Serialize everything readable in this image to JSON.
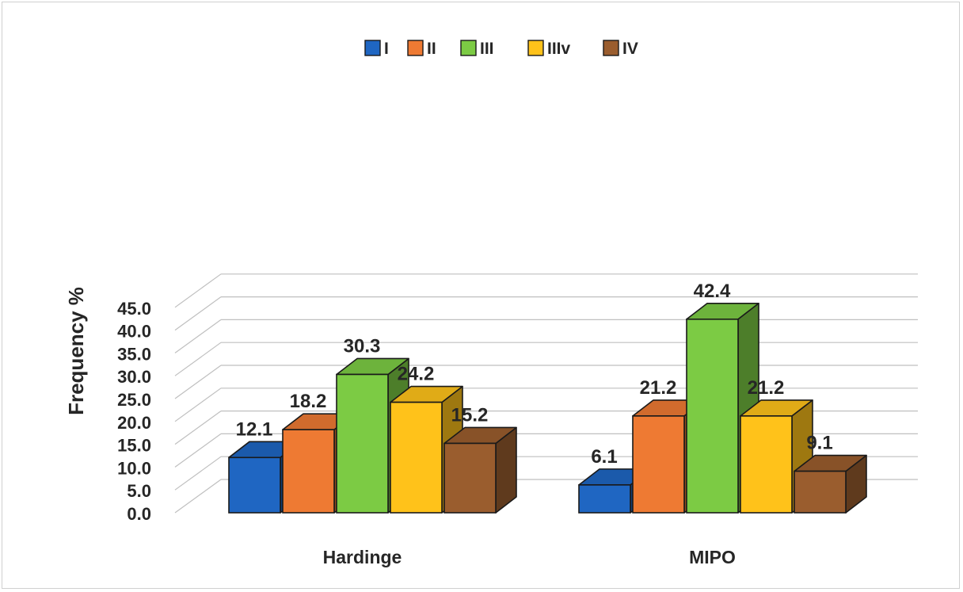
{
  "chart_data": {
    "type": "bar",
    "title": "",
    "xlabel": "",
    "ylabel": "Frequency %",
    "ylim": [
      0,
      45
    ],
    "yticks": [
      "0.0",
      "5.0",
      "10.0",
      "15.0",
      "20.0",
      "25.0",
      "30.0",
      "35.0",
      "40.0",
      "45.0"
    ],
    "categories": [
      "Hardinge",
      "MIPO"
    ],
    "grid": true,
    "legend_position": "top",
    "series": [
      {
        "name": "I",
        "values": [
          12.1,
          6.1
        ],
        "labels": [
          "12.1",
          "6.1"
        ],
        "color": "#1F66C2"
      },
      {
        "name": "II",
        "values": [
          18.2,
          21.2
        ],
        "labels": [
          "18.2",
          "21.2"
        ],
        "color": "#EE7A33"
      },
      {
        "name": "III",
        "values": [
          30.3,
          42.4
        ],
        "labels": [
          "30.3",
          "42.4"
        ],
        "color": "#7CCB44"
      },
      {
        "name": "IIIv",
        "values": [
          24.2,
          21.2
        ],
        "labels": [
          "24.2",
          "21.2"
        ],
        "color": "#FFC21A"
      },
      {
        "name": "IV",
        "values": [
          15.2,
          9.1
        ],
        "labels": [
          "15.2",
          "9.1"
        ],
        "color": "#9A5D2E"
      }
    ]
  }
}
